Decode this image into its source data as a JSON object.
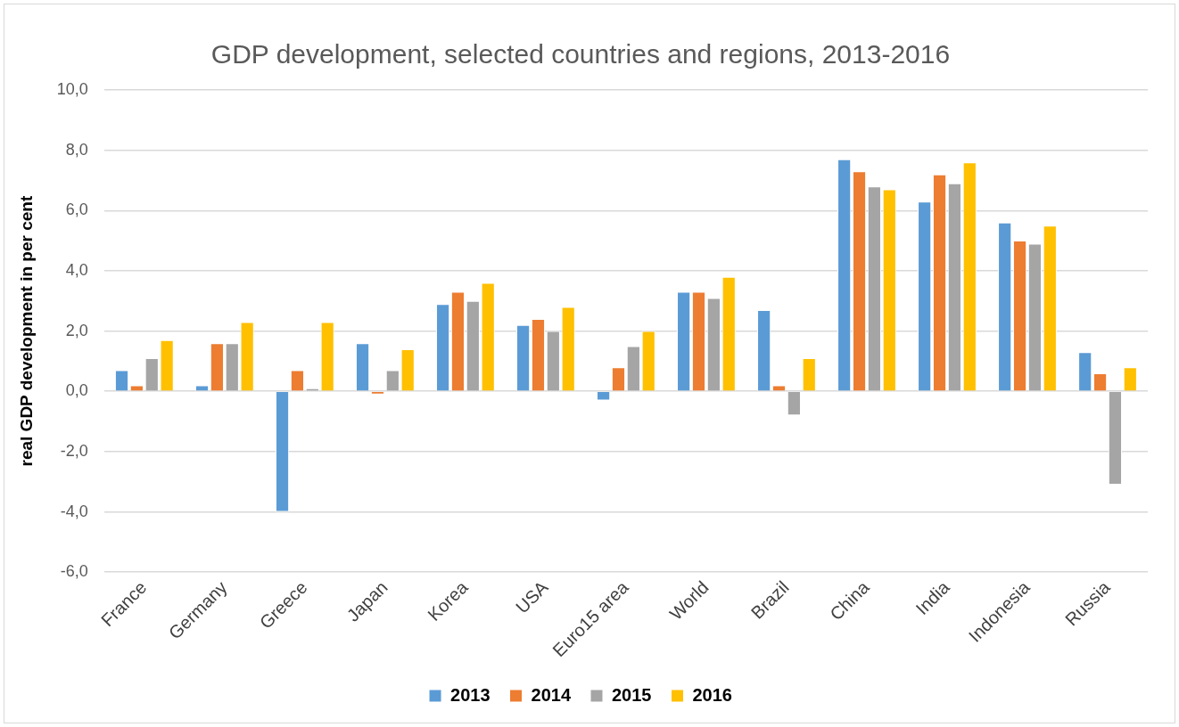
{
  "chart_data": {
    "type": "bar",
    "title": "GDP development, selected countries and regions, 2013-2016",
    "ylabel": "real GDP development in per cent",
    "categories": [
      "France",
      "Germany",
      "Greece",
      "Japan",
      "Korea",
      "USA",
      "Euro15 area",
      "World",
      "Brazil",
      "China",
      "India",
      "Indonesia",
      "Russia"
    ],
    "series": [
      {
        "name": "2013",
        "color": "#5b9bd5",
        "values": [
          0.7,
          0.2,
          -4.0,
          1.6,
          2.9,
          2.2,
          -0.3,
          3.3,
          2.7,
          7.7,
          6.3,
          5.6,
          1.3
        ]
      },
      {
        "name": "2014",
        "color": "#ed7d31",
        "values": [
          0.2,
          1.6,
          0.7,
          -0.1,
          3.3,
          2.4,
          0.8,
          3.3,
          0.2,
          7.3,
          7.2,
          5.0,
          0.6
        ]
      },
      {
        "name": "2015",
        "color": "#a5a5a5",
        "values": [
          1.1,
          1.6,
          0.1,
          0.7,
          3.0,
          2.0,
          1.5,
          3.1,
          -0.8,
          6.8,
          6.9,
          4.9,
          -3.1
        ]
      },
      {
        "name": "2016",
        "color": "#ffc000",
        "values": [
          1.7,
          2.3,
          2.3,
          1.4,
          3.6,
          2.8,
          2.0,
          3.8,
          1.1,
          6.7,
          7.6,
          5.5,
          0.8
        ]
      }
    ],
    "ylim": [
      -6,
      10
    ],
    "yticks": [
      {
        "value": -6,
        "label": "-6,0"
      },
      {
        "value": -4,
        "label": "-4,0"
      },
      {
        "value": -2,
        "label": "-2,0"
      },
      {
        "value": 0,
        "label": "0,0"
      },
      {
        "value": 2,
        "label": "2,0"
      },
      {
        "value": 4,
        "label": "4,0"
      },
      {
        "value": 6,
        "label": "6,0"
      },
      {
        "value": 8,
        "label": "8,0"
      },
      {
        "value": 10,
        "label": "10,0"
      }
    ],
    "grid": "y",
    "legend": "bottom"
  }
}
